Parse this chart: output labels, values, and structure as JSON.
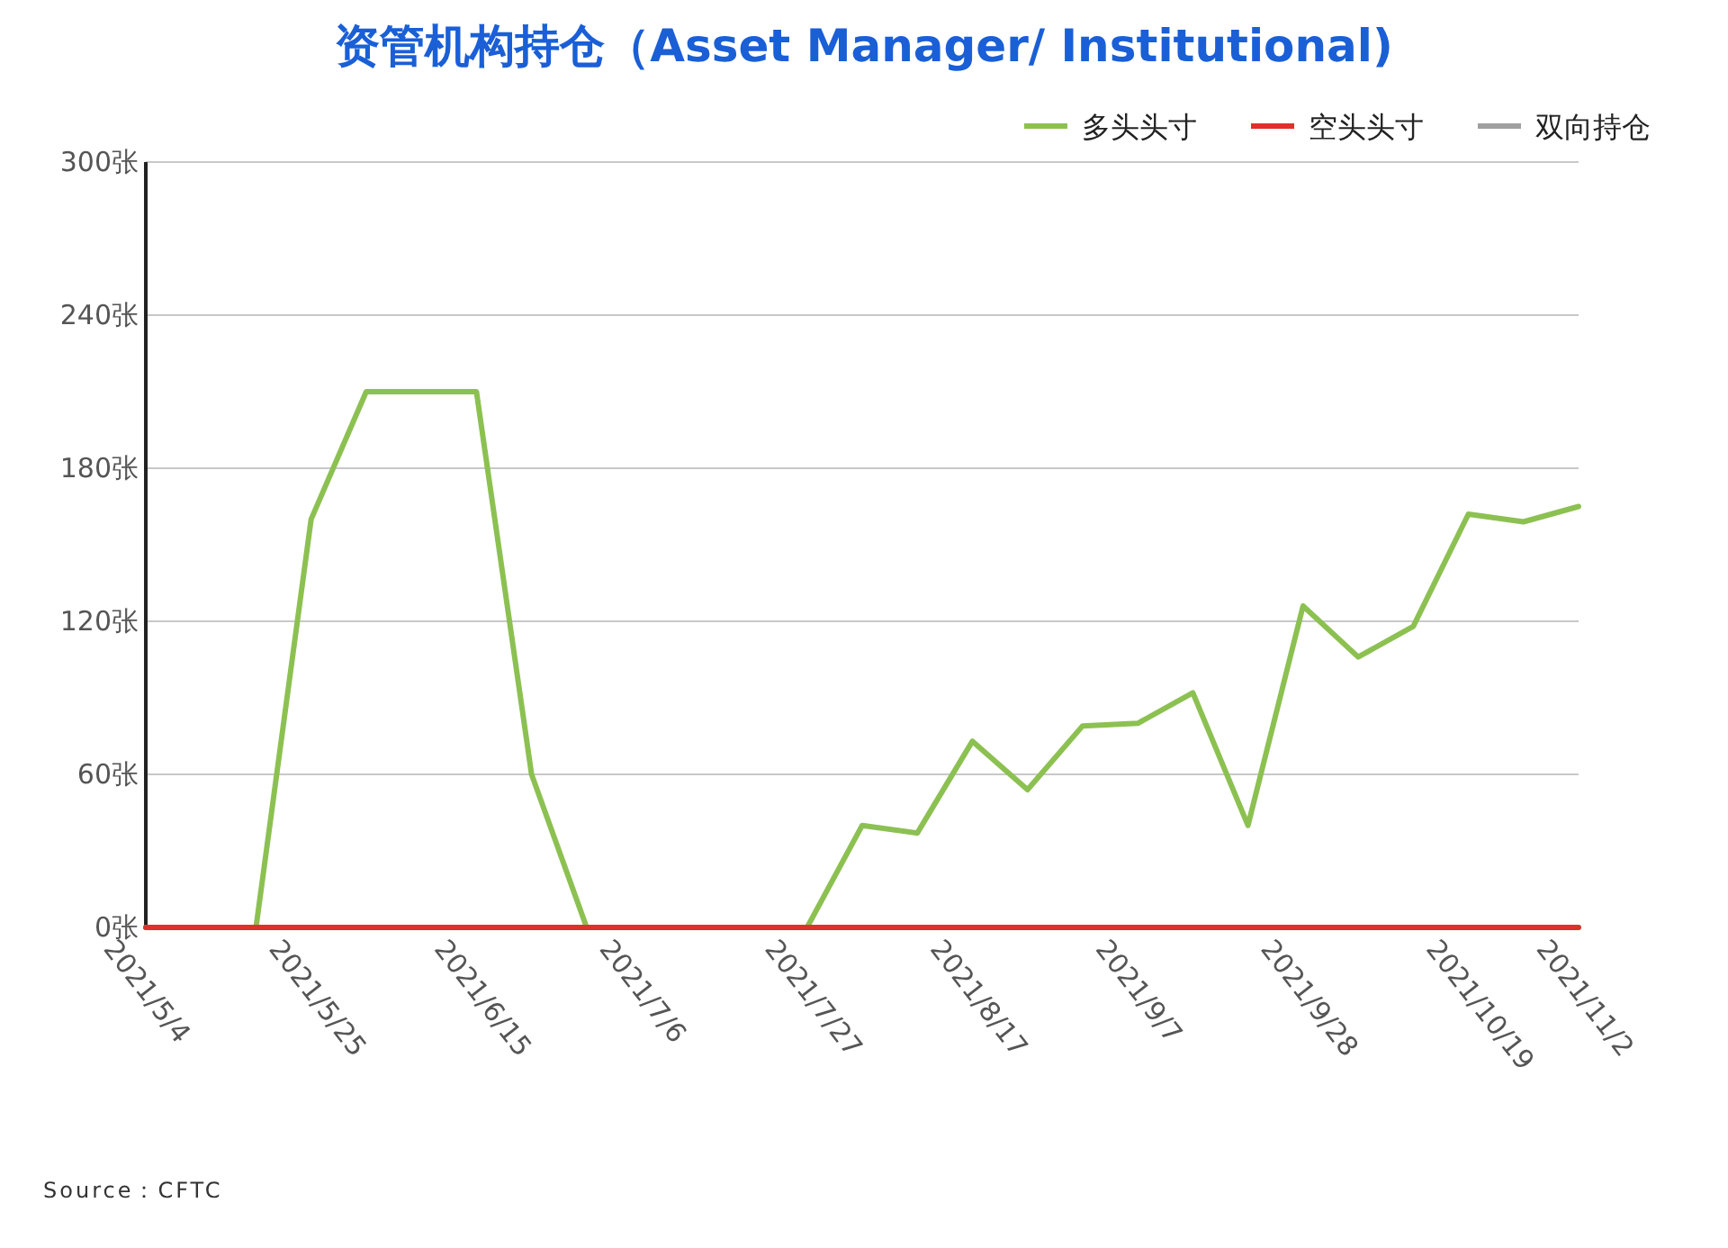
{
  "chart_data": {
    "type": "line",
    "title": "资管机构持仓（Asset Manager/ Institutional)",
    "x": [
      "2021-05-04",
      "2021-05-11",
      "2021-05-18",
      "2021-05-25",
      "2021-06-01",
      "2021-06-08",
      "2021-06-15",
      "2021-06-22",
      "2021-06-29",
      "2021-07-06",
      "2021-07-13",
      "2021-07-20",
      "2021-07-27",
      "2021-08-03",
      "2021-08-10",
      "2021-08-17",
      "2021-08-24",
      "2021-08-31",
      "2021-09-07",
      "2021-09-14",
      "2021-09-21",
      "2021-09-28",
      "2021-10-05",
      "2021-10-12",
      "2021-10-19",
      "2021-10-26",
      "2021-11-02"
    ],
    "series": [
      {
        "name": "多头头寸",
        "color": "#8cc152",
        "values": [
          0,
          0,
          0,
          160,
          210,
          210,
          210,
          60,
          0,
          0,
          0,
          0,
          0,
          40,
          37,
          73,
          54,
          79,
          80,
          92,
          40,
          126,
          106,
          118,
          162,
          159,
          165
        ]
      },
      {
        "name": "空头头寸",
        "color": "#e0302a",
        "values": [
          0,
          0,
          0,
          0,
          0,
          0,
          0,
          0,
          0,
          0,
          0,
          0,
          0,
          0,
          0,
          0,
          0,
          0,
          0,
          0,
          0,
          0,
          0,
          0,
          0,
          0,
          0
        ]
      },
      {
        "name": "双向持仓",
        "color": "#a0a0a0",
        "values": [
          null,
          null,
          null,
          null,
          null,
          null,
          null,
          null,
          null,
          null,
          null,
          null,
          null,
          null,
          null,
          null,
          null,
          null,
          null,
          null,
          null,
          null,
          null,
          null,
          null,
          null,
          null
        ]
      }
    ],
    "xlim": [
      "2021-05-04",
      "2021-11-02"
    ],
    "xticks": [
      {
        "value": "2021-05-04",
        "label": "2021/5/4"
      },
      {
        "value": "2021-05-25",
        "label": "2021/5/25"
      },
      {
        "value": "2021-06-15",
        "label": "2021/6/15"
      },
      {
        "value": "2021-07-06",
        "label": "2021/7/6"
      },
      {
        "value": "2021-07-27",
        "label": "2021/7/27"
      },
      {
        "value": "2021-08-17",
        "label": "2021/8/17"
      },
      {
        "value": "2021-09-07",
        "label": "2021/9/7"
      },
      {
        "value": "2021-09-28",
        "label": "2021/9/28"
      },
      {
        "value": "2021-10-19",
        "label": "2021/10/19"
      },
      {
        "value": "2021-11-02",
        "label": "2021/11/2"
      }
    ],
    "ylim": [
      0,
      300
    ],
    "yticks": [
      {
        "value": 0,
        "label": "0张"
      },
      {
        "value": 60,
        "label": "60张"
      },
      {
        "value": 120,
        "label": "120张"
      },
      {
        "value": 180,
        "label": "180张"
      },
      {
        "value": 240,
        "label": "240张"
      },
      {
        "value": 300,
        "label": "300张"
      }
    ],
    "grid": "y",
    "legend": "top right",
    "marker": "none",
    "line_style": "solid",
    "annotations": [
      "Source：CFTC"
    ]
  }
}
